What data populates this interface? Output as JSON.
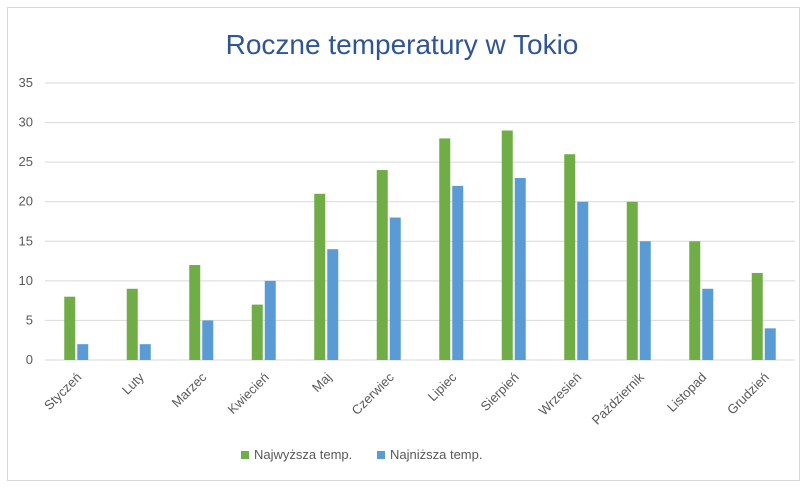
{
  "chart_data": {
    "type": "bar",
    "title": "Roczne temperatury w Tokio",
    "xlabel": "",
    "ylabel": "",
    "categories": [
      "Styczeń",
      "Luty",
      "Marzec",
      "Kwiecień",
      "Maj",
      "Czerwiec",
      "Lipiec",
      "Sierpień",
      "Wrzesień",
      "Październik",
      "Listopad",
      "Grudzień"
    ],
    "series": [
      {
        "name": "Najwyższa temp.",
        "color": "#70ad47",
        "values": [
          8,
          9,
          12,
          7,
          21,
          24,
          28,
          29,
          26,
          20,
          15,
          11
        ]
      },
      {
        "name": "Najniższa temp.",
        "color": "#5b9bd5",
        "values": [
          2,
          2,
          5,
          10,
          14,
          18,
          22,
          23,
          20,
          15,
          9,
          4
        ]
      }
    ],
    "ylim": [
      0,
      35
    ],
    "yticks": [
      0,
      5,
      10,
      15,
      20,
      25,
      30,
      35
    ],
    "grid": true,
    "legend_position": "bottom"
  }
}
